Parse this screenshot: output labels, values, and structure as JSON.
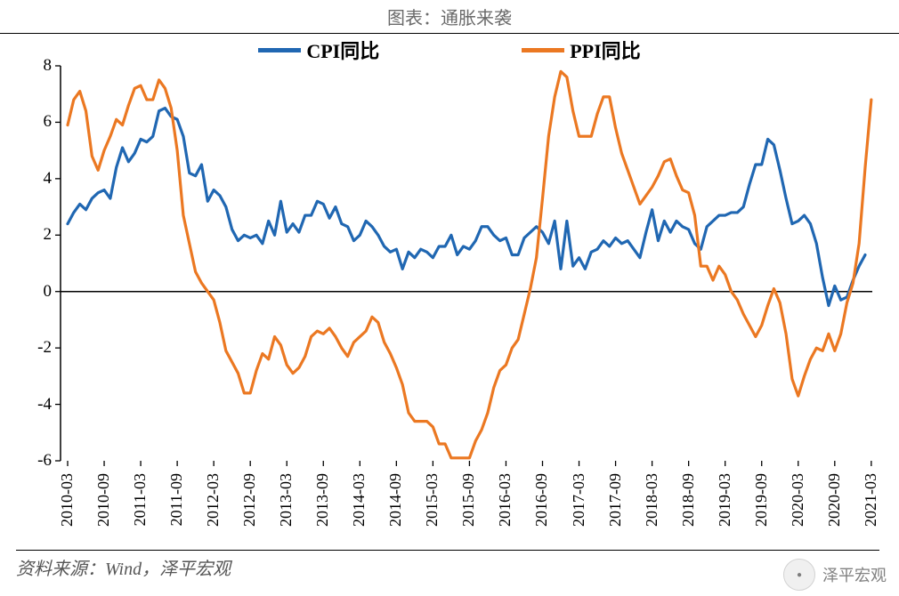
{
  "title": "图表：通胀来袭",
  "source": "资料来源：Wind，泽平宏观",
  "watermark": "泽平宏观",
  "chart": {
    "type": "line",
    "background_color": "#ffffff",
    "axis_line_color": "#000000",
    "axis_line_width": 1.5,
    "tick_length": 6,
    "label_fontsize": 19,
    "title_fontsize": 20,
    "legend_fontsize": 22,
    "line_width": 3.2,
    "ylim": [
      -6,
      8
    ],
    "ytick_step": 2,
    "yticks": [
      -6,
      -4,
      -2,
      0,
      2,
      4,
      6,
      8
    ],
    "x_labels": [
      "2010-03",
      "2010-09",
      "2011-03",
      "2011-09",
      "2012-03",
      "2012-09",
      "2013-03",
      "2013-09",
      "2014-03",
      "2014-09",
      "2015-03",
      "2015-09",
      "2016-03",
      "2016-09",
      "2017-03",
      "2017-09",
      "2018-03",
      "2018-09",
      "2019-03",
      "2019-09",
      "2020-03",
      "2020-09",
      "2021-03"
    ],
    "x_index_range": [
      0,
      133
    ],
    "series": [
      {
        "name": "CPI同比",
        "color": "#2067b2",
        "data": [
          2.4,
          2.8,
          3.1,
          2.9,
          3.3,
          3.5,
          3.6,
          3.3,
          4.4,
          5.1,
          4.6,
          4.9,
          5.4,
          5.3,
          5.5,
          6.4,
          6.5,
          6.2,
          6.1,
          5.5,
          4.2,
          4.1,
          4.5,
          3.2,
          3.6,
          3.4,
          3.0,
          2.2,
          1.8,
          2.0,
          1.9,
          2.0,
          1.7,
          2.5,
          2.0,
          3.2,
          2.1,
          2.4,
          2.1,
          2.7,
          2.7,
          3.2,
          3.1,
          2.6,
          3.0,
          2.4,
          2.3,
          1.8,
          2.0,
          2.5,
          2.3,
          2.0,
          1.6,
          1.4,
          1.5,
          0.8,
          1.4,
          1.2,
          1.5,
          1.4,
          1.2,
          1.6,
          1.6,
          2.0,
          1.3,
          1.6,
          1.5,
          1.8,
          2.3,
          2.3,
          2.0,
          1.8,
          1.9,
          1.3,
          1.3,
          1.9,
          2.1,
          2.3,
          2.1,
          1.7,
          2.5,
          0.8,
          2.5,
          0.9,
          1.2,
          0.8,
          1.4,
          1.5,
          1.8,
          1.6,
          1.9,
          1.7,
          1.8,
          1.5,
          1.2,
          2.1,
          2.9,
          1.8,
          2.5,
          2.1,
          2.5,
          2.3,
          2.2,
          1.7,
          1.5,
          2.3,
          2.5,
          2.7,
          2.7,
          2.8,
          2.8,
          3.0,
          3.8,
          4.5,
          4.5,
          5.4,
          5.2,
          4.3,
          3.3,
          2.4,
          2.5,
          2.7,
          2.4,
          1.7,
          0.5,
          -0.5,
          0.2,
          -0.3,
          -0.2,
          0.4,
          0.9,
          1.3
        ]
      },
      {
        "name": "PPI同比",
        "color": "#eb7822",
        "data": [
          5.9,
          6.8,
          7.1,
          6.4,
          4.8,
          4.3,
          5.0,
          5.5,
          6.1,
          5.9,
          6.6,
          7.2,
          7.3,
          6.8,
          6.8,
          7.5,
          7.2,
          6.5,
          5.0,
          2.7,
          1.7,
          0.7,
          0.3,
          0.0,
          -0.3,
          -1.1,
          -2.1,
          -2.5,
          -2.9,
          -3.6,
          -3.6,
          -2.8,
          -2.2,
          -2.4,
          -1.6,
          -1.9,
          -2.6,
          -2.9,
          -2.7,
          -2.3,
          -1.6,
          -1.4,
          -1.5,
          -1.3,
          -1.6,
          -2.0,
          -2.3,
          -1.8,
          -1.6,
          -1.4,
          -0.9,
          -1.1,
          -1.8,
          -2.2,
          -2.7,
          -3.3,
          -4.3,
          -4.6,
          -4.6,
          -4.6,
          -4.8,
          -5.4,
          -5.4,
          -5.9,
          -5.9,
          -5.9,
          -5.9,
          -5.3,
          -4.9,
          -4.3,
          -3.4,
          -2.8,
          -2.6,
          -2.0,
          -1.7,
          -0.8,
          0.1,
          1.2,
          3.3,
          5.5,
          6.9,
          7.8,
          7.6,
          6.4,
          5.5,
          5.5,
          5.5,
          6.3,
          6.9,
          6.9,
          5.8,
          4.9,
          4.3,
          3.7,
          3.1,
          3.4,
          3.7,
          4.1,
          4.6,
          4.7,
          4.1,
          3.6,
          3.5,
          2.7,
          0.9,
          0.9,
          0.4,
          0.9,
          0.6,
          0.0,
          -0.3,
          -0.8,
          -1.2,
          -1.6,
          -1.2,
          -0.5,
          0.1,
          -0.4,
          -1.5,
          -3.1,
          -3.7,
          -3.0,
          -2.4,
          -2.0,
          -2.1,
          -1.5,
          -2.1,
          -1.5,
          -0.4,
          0.3,
          1.7,
          4.4,
          6.8
        ]
      }
    ]
  }
}
